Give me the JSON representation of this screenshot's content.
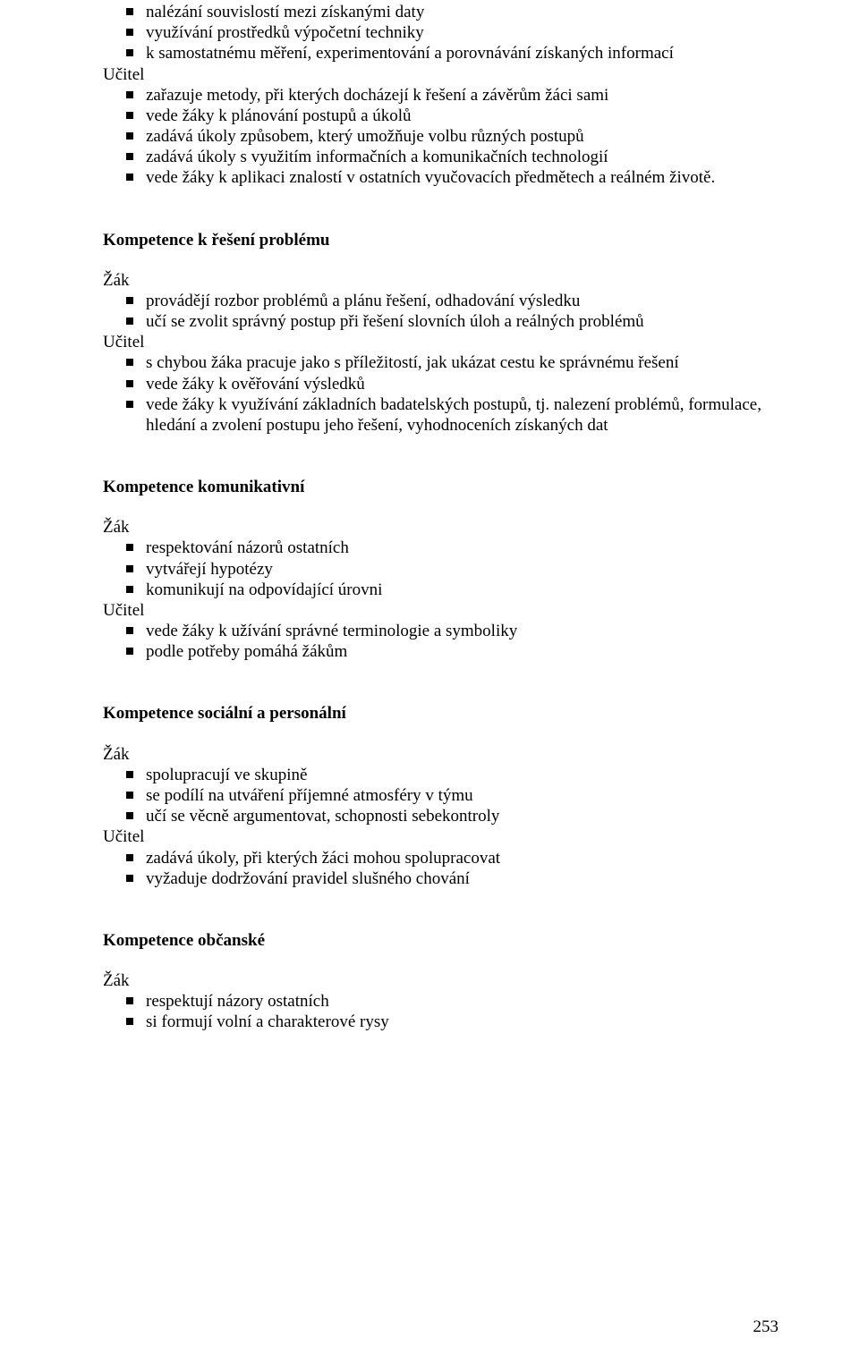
{
  "page_number": "253",
  "top": {
    "items": [
      "nalézání souvislostí mezi získanými daty",
      "využívání prostředků výpočetní techniky",
      "k samostatnému měření, experimentování a porovnávání získaných informací"
    ],
    "role": "Učitel",
    "items2": [
      "zařazuje metody, při kterých docházejí k řešení a závěrům žáci sami",
      "vede žáky k plánování postupů a úkolů",
      "zadává úkoly způsobem, který umožňuje volbu různých postupů",
      "zadává úkoly s využitím informačních a komunikačních technologií",
      "vede žáky k aplikaci znalostí v ostatních vyučovacích předmětech a reálném životě."
    ]
  },
  "sections": [
    {
      "heading": "Kompetence k řešení problému",
      "role1": "Žák",
      "list1": [
        "provádějí rozbor problémů a plánu řešení, odhadování výsledku",
        "učí se zvolit správný postup při řešení slovních úloh a reálných problémů"
      ],
      "role2": "Učitel",
      "list2": [
        "s chybou žáka pracuje jako s příležitostí, jak ukázat cestu ke správnému řešení",
        "vede žáky k ověřování výsledků",
        "vede žáky k využívání základních badatelských postupů, tj. nalezení problémů, formulace, hledání a zvolení postupu jeho řešení, vyhodnoceních získaných dat"
      ]
    },
    {
      "heading": "Kompetence komunikativní",
      "role1": "Žák",
      "list1": [
        "respektování názorů ostatních",
        "vytvářejí hypotézy",
        "komunikují na odpovídající úrovni"
      ],
      "role2": "Učitel",
      "list2": [
        "vede žáky k užívání správné terminologie a symboliky",
        "podle potřeby pomáhá žákům"
      ]
    },
    {
      "heading": "Kompetence sociální a personální",
      "role1": "Žák",
      "list1": [
        "spolupracují ve skupině",
        "se podílí na utváření příjemné atmosféry v týmu",
        "učí se věcně argumentovat, schopnosti sebekontroly"
      ],
      "role2": "Učitel",
      "list2": [
        "zadává úkoly, při kterých žáci mohou spolupracovat",
        "vyžaduje dodržování pravidel slušného chování"
      ]
    },
    {
      "heading": "Kompetence občanské",
      "role1": "Žák",
      "list1": [
        "respektují názory ostatních",
        "si formují volní a charakterové rysy"
      ]
    }
  ]
}
